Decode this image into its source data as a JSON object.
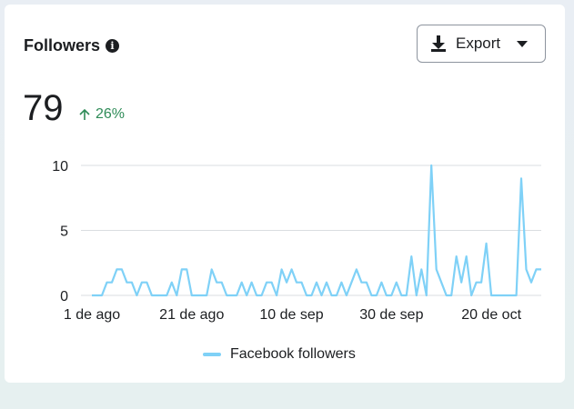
{
  "header": {
    "title": "Followers",
    "info_icon": "info-icon"
  },
  "export_button": {
    "label": "Export",
    "icon": "download-icon",
    "caret_icon": "caret-down-icon"
  },
  "metric": {
    "value": "79",
    "delta": "26%",
    "delta_icon": "arrow-up-icon",
    "delta_color": "#2e8b57"
  },
  "legend": {
    "label": "Facebook followers",
    "color": "#7fd1f7"
  },
  "chart_data": {
    "type": "line",
    "ylim": [
      0,
      10
    ],
    "yticks": [
      "0",
      "5",
      "10"
    ],
    "xtick_labels": [
      "1 de ago",
      "21 de ago",
      "10 de sep",
      "30 de sep",
      "20 de oct"
    ],
    "xtick_days": [
      0,
      20,
      40,
      60,
      80
    ],
    "grid": true,
    "series": [
      {
        "name": "Facebook followers",
        "color": "#7fd1f7",
        "values": [
          0,
          0,
          0,
          1,
          1,
          2,
          2,
          1,
          1,
          0,
          1,
          1,
          0,
          0,
          0,
          0,
          1,
          0,
          2,
          2,
          0,
          0,
          0,
          0,
          2,
          1,
          1,
          0,
          0,
          0,
          1,
          0,
          1,
          0,
          0,
          1,
          1,
          0,
          2,
          1,
          2,
          1,
          1,
          0,
          0,
          1,
          0,
          1,
          0,
          0,
          1,
          0,
          1,
          2,
          1,
          1,
          0,
          0,
          1,
          0,
          0,
          1,
          0,
          0,
          3,
          0,
          2,
          0,
          10,
          2,
          1,
          0,
          0,
          3,
          1,
          3,
          0,
          1,
          1,
          4,
          0,
          0,
          0,
          0,
          0,
          0,
          9,
          2,
          1,
          2,
          2
        ]
      }
    ]
  }
}
